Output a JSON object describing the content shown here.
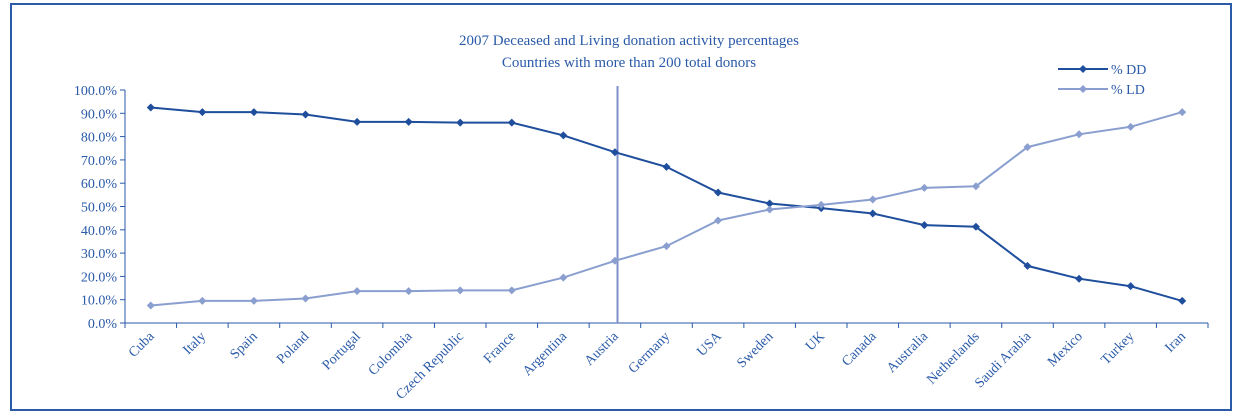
{
  "chart_data": {
    "type": "line",
    "title": "2007 Deceased and Living donation activity percentages",
    "subtitle": "Countries with more than 200 total donors",
    "xlabel": "",
    "ylabel": "",
    "categories": [
      "Cuba",
      "Italy",
      "Spain",
      "Poland",
      "Portugal",
      "Colombia",
      "Czech Republic",
      "France",
      "Argentina",
      "Austria",
      "Germany",
      "USA",
      "Sweden",
      "UK",
      "Canada",
      "Australia",
      "Netherlands",
      "Saudi Arabia",
      "Mexico",
      "Turkey",
      "Iran"
    ],
    "yticks": [
      "0.0%",
      "10.0%",
      "20.0%",
      "30.0%",
      "40.0%",
      "50.0%",
      "60.0%",
      "70.0%",
      "80.0%",
      "90.0%",
      "100.0%"
    ],
    "ylim": [
      0,
      100
    ],
    "legend_position": "top-right",
    "series": [
      {
        "name": "% DD",
        "color": "#1f4e9c",
        "values": [
          92.5,
          90.5,
          90.5,
          89.5,
          86.3,
          86.3,
          86.0,
          86.0,
          80.5,
          73.3,
          67.0,
          56.0,
          51.3,
          49.3,
          47.0,
          42.0,
          41.3,
          24.5,
          19.0,
          15.8,
          9.5
        ]
      },
      {
        "name": "% LD",
        "color": "#8a9fd0",
        "values": [
          7.5,
          9.5,
          9.5,
          10.5,
          13.7,
          13.7,
          14.0,
          14.0,
          19.5,
          26.7,
          33.0,
          44.0,
          48.7,
          50.7,
          53.0,
          58.0,
          58.7,
          75.5,
          81.0,
          84.2,
          90.5
        ]
      }
    ]
  }
}
